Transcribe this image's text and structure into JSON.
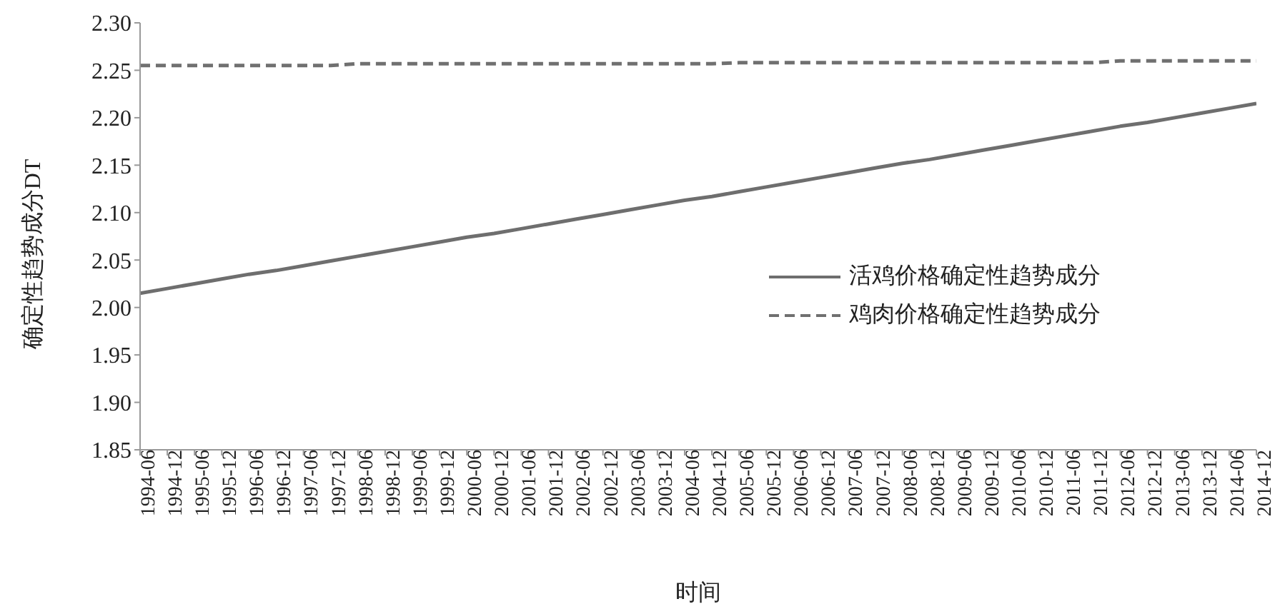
{
  "chart_data": {
    "type": "line",
    "xlabel": "时间",
    "ylabel": "确定性趋势成分DT",
    "categories": [
      "1994-06",
      "1994-12",
      "1995-06",
      "1995-12",
      "1996-06",
      "1996-12",
      "1997-06",
      "1997-12",
      "1998-06",
      "1998-12",
      "1999-06",
      "1999-12",
      "2000-06",
      "2000-12",
      "2001-06",
      "2001-12",
      "2002-06",
      "2002-12",
      "2003-06",
      "2003-12",
      "2004-06",
      "2004-12",
      "2005-06",
      "2005-12",
      "2006-06",
      "2006-12",
      "2007-06",
      "2007-12",
      "2008-06",
      "2008-12",
      "2009-06",
      "2009-12",
      "2010-06",
      "2010-12",
      "2011-06",
      "2011-12",
      "2012-06",
      "2012-12",
      "2013-06",
      "2013-12",
      "2014-06",
      "2014-12"
    ],
    "series": [
      {
        "name": "活鸡价格确定性趋势成分",
        "color": "#6e6e6e",
        "line_style": "solid",
        "values": [
          2.015,
          2.02,
          2.025,
          2.03,
          2.035,
          2.039,
          2.044,
          2.049,
          2.054,
          2.059,
          2.064,
          2.069,
          2.074,
          2.078,
          2.083,
          2.088,
          2.093,
          2.098,
          2.103,
          2.108,
          2.113,
          2.117,
          2.122,
          2.127,
          2.132,
          2.137,
          2.142,
          2.147,
          2.152,
          2.156,
          2.161,
          2.166,
          2.171,
          2.176,
          2.181,
          2.186,
          2.191,
          2.195,
          2.2,
          2.205,
          2.21,
          2.215
        ]
      },
      {
        "name": "鸡肉价格确定性趋势成分",
        "color": "#707070",
        "line_style": "dashed",
        "values": [
          2.255,
          2.255,
          2.255,
          2.255,
          2.255,
          2.255,
          2.255,
          2.255,
          2.257,
          2.257,
          2.257,
          2.257,
          2.257,
          2.257,
          2.257,
          2.257,
          2.257,
          2.257,
          2.257,
          2.257,
          2.257,
          2.257,
          2.258,
          2.258,
          2.258,
          2.258,
          2.258,
          2.258,
          2.258,
          2.258,
          2.258,
          2.258,
          2.258,
          2.258,
          2.258,
          2.258,
          2.26,
          2.26,
          2.26,
          2.26,
          2.26,
          2.26
        ]
      }
    ],
    "ylim": [
      1.85,
      2.3
    ],
    "yticks": [
      1.85,
      {
        "value": 1.9,
        "label": "1.90"
      },
      1.95,
      {
        "value": 2.0,
        "label": "2.00"
      },
      2.05,
      {
        "value": 2.1,
        "label": "2.10"
      },
      2.15,
      {
        "value": 2.2,
        "label": "2.20"
      },
      2.25,
      {
        "value": 2.3,
        "label": "2.30"
      }
    ],
    "legend": "right",
    "marker": "none"
  }
}
